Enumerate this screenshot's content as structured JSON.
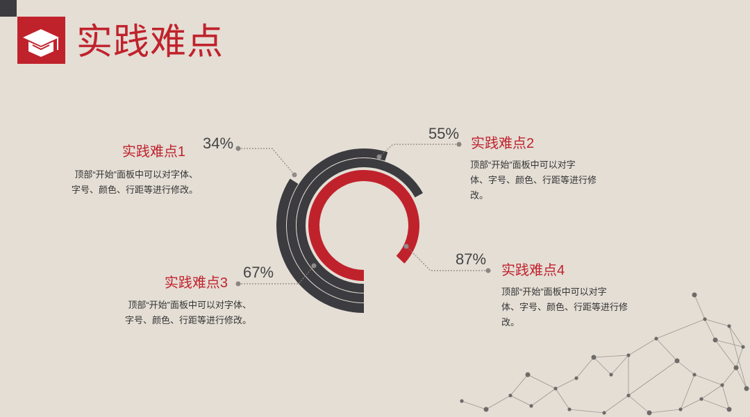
{
  "header": {
    "title": "实践难点",
    "icon": "graduation-cap-icon"
  },
  "colors": {
    "accent": "#c0222c",
    "dark": "#3c3b3f",
    "background": "#e4ded5"
  },
  "chart_data": {
    "type": "radial-bar",
    "start": "bottom",
    "direction": "clockwise",
    "series": [
      {
        "name": "实践难点1",
        "value": 34,
        "label": "34%",
        "color": "#3c3b3f",
        "desc": [
          "顶部“开始”面板中可以对字体、",
          "字号、颜色、行距等进行修改。"
        ]
      },
      {
        "name": "实践难点2",
        "value": 55,
        "label": "55%",
        "color": "#3c3b3f",
        "desc": [
          "顶部“开始”面板中可以对字",
          "体、字号、颜色、行距等进行修",
          "改。"
        ]
      },
      {
        "name": "实践难点3",
        "value": 67,
        "label": "67%",
        "color": "#3c3b3f",
        "desc": [
          "顶部“开始”面板中可以对字体、",
          "字号、颜色、行距等进行修改。"
        ]
      },
      {
        "name": "实践难点4",
        "value": 87,
        "label": "87%",
        "color": "#c0222c",
        "desc": [
          "顶部“开始”面板中可以对字",
          "体、字号、颜色、行距等进行修",
          "改。"
        ]
      }
    ]
  }
}
